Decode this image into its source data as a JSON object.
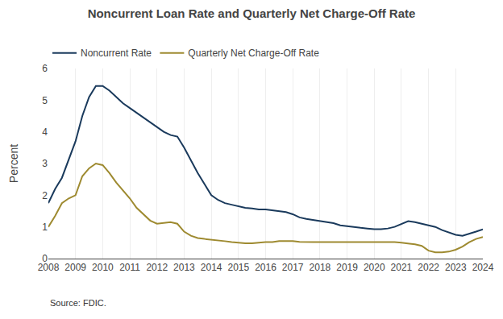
{
  "chart_data": {
    "type": "line",
    "title": "Noncurrent Loan Rate and Quarterly Net Charge-Off Rate",
    "ylabel": "Percent",
    "annotations": [
      "Source: FDIC."
    ],
    "x": [
      2008.0,
      2008.25,
      2008.5,
      2008.75,
      2009.0,
      2009.25,
      2009.5,
      2009.75,
      2010.0,
      2010.25,
      2010.5,
      2010.75,
      2011.0,
      2011.25,
      2011.5,
      2011.75,
      2012.0,
      2012.25,
      2012.5,
      2012.75,
      2013.0,
      2013.25,
      2013.5,
      2013.75,
      2014.0,
      2014.25,
      2014.5,
      2014.75,
      2015.0,
      2015.25,
      2015.5,
      2015.75,
      2016.0,
      2016.25,
      2016.5,
      2016.75,
      2017.0,
      2017.25,
      2017.5,
      2017.75,
      2018.0,
      2018.25,
      2018.5,
      2018.75,
      2019.0,
      2019.25,
      2019.5,
      2019.75,
      2020.0,
      2020.25,
      2020.5,
      2020.75,
      2021.0,
      2021.25,
      2021.5,
      2021.75,
      2022.0,
      2022.25,
      2022.5,
      2022.75,
      2023.0,
      2023.25,
      2023.5,
      2023.75,
      2024.0
    ],
    "series": [
      {
        "name": "Noncurrent Rate",
        "color": "#1a3a5c",
        "values": [
          1.75,
          2.2,
          2.55,
          3.1,
          3.7,
          4.5,
          5.1,
          5.45,
          5.45,
          5.3,
          5.1,
          4.9,
          4.75,
          4.6,
          4.45,
          4.3,
          4.15,
          4.0,
          3.9,
          3.85,
          3.5,
          3.1,
          2.7,
          2.35,
          2.0,
          1.85,
          1.75,
          1.7,
          1.65,
          1.6,
          1.58,
          1.55,
          1.55,
          1.52,
          1.5,
          1.47,
          1.4,
          1.3,
          1.25,
          1.22,
          1.18,
          1.15,
          1.12,
          1.05,
          1.02,
          1.0,
          0.97,
          0.95,
          0.93,
          0.93,
          0.95,
          1.0,
          1.1,
          1.18,
          1.15,
          1.1,
          1.05,
          1.0,
          0.9,
          0.82,
          0.75,
          0.72,
          0.78,
          0.85,
          0.92
        ]
      },
      {
        "name": "Quarterly Net Charge-Off Rate",
        "color": "#9e8a30",
        "values": [
          1.0,
          1.35,
          1.75,
          1.9,
          2.0,
          2.6,
          2.85,
          3.0,
          2.95,
          2.7,
          2.4,
          2.15,
          1.9,
          1.6,
          1.4,
          1.2,
          1.1,
          1.12,
          1.15,
          1.1,
          0.85,
          0.72,
          0.65,
          0.62,
          0.6,
          0.58,
          0.55,
          0.52,
          0.5,
          0.48,
          0.48,
          0.5,
          0.52,
          0.52,
          0.55,
          0.55,
          0.55,
          0.53,
          0.52,
          0.52,
          0.52,
          0.52,
          0.52,
          0.52,
          0.52,
          0.52,
          0.52,
          0.52,
          0.52,
          0.52,
          0.52,
          0.52,
          0.5,
          0.48,
          0.45,
          0.4,
          0.25,
          0.2,
          0.2,
          0.22,
          0.28,
          0.38,
          0.52,
          0.62,
          0.68
        ]
      }
    ],
    "xlim": [
      2008,
      2024
    ],
    "xticks": [
      2008,
      2009,
      2010,
      2011,
      2012,
      2013,
      2014,
      2015,
      2016,
      2017,
      2018,
      2019,
      2020,
      2021,
      2022,
      2023,
      2024
    ],
    "ylim": [
      0,
      6
    ],
    "yticks": [
      0,
      1,
      2,
      3,
      4,
      5,
      6
    ],
    "grid": "x",
    "legend": "top"
  }
}
